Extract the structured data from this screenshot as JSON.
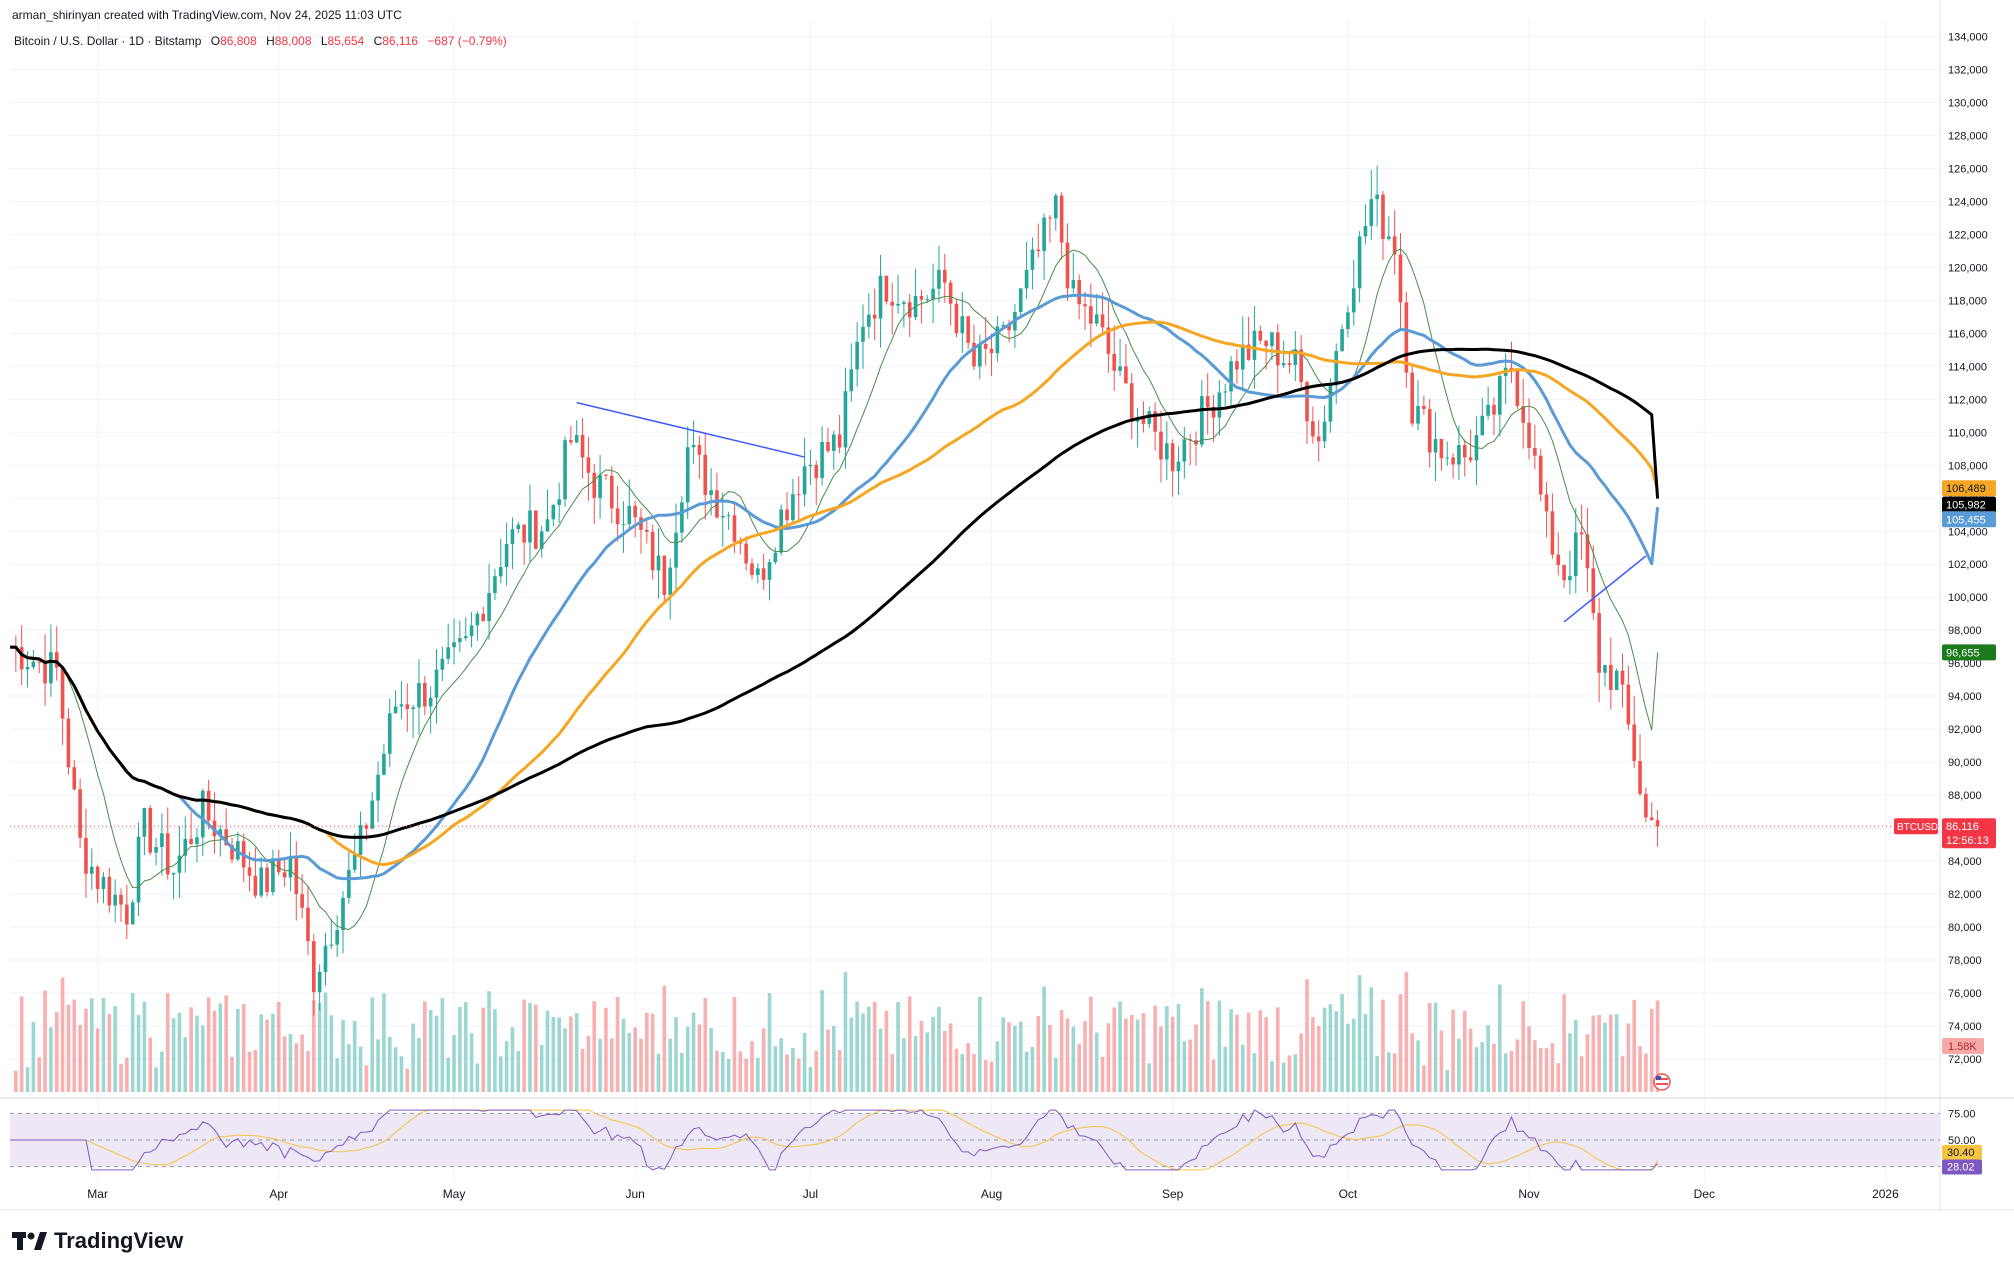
{
  "header": {
    "author_line": "arman_shirinyan created with TradingView.com, Nov 24, 2025 11:03 UTC",
    "symbol": "Bitcoin / U.S. Dollar · 1D · Bitstamp",
    "ohlc": {
      "o_label": "O",
      "o": "86,808",
      "h_label": "H",
      "h": "88,008",
      "l_label": "L",
      "l": "85,654",
      "c_label": "C",
      "c": "86,116",
      "change": "−687 (−0.79%)"
    }
  },
  "branding": {
    "logo_text": "TradingView"
  },
  "colors": {
    "up": "#26a69a",
    "down": "#ef5350",
    "ma_fast": "#4a8c4a",
    "ma_blue": "#5b9bd5",
    "ma_orange": "#f5a623",
    "ma_black": "#000000",
    "rsi_line": "#7e57c2",
    "rsi_ma": "#f5c542",
    "rsi_band": "#ede7f6"
  },
  "chart_data": {
    "type": "candlestick",
    "title": "Bitcoin / U.S. Dollar · 1D · Bitstamp",
    "xlabel": "",
    "ylabel": "",
    "ylim": [
      70000,
      135000
    ],
    "y_ticks": [
      72000,
      74000,
      76000,
      78000,
      80000,
      82000,
      84000,
      86000,
      88000,
      90000,
      92000,
      94000,
      96000,
      98000,
      100000,
      102000,
      104000,
      106000,
      108000,
      110000,
      112000,
      114000,
      116000,
      118000,
      120000,
      122000,
      124000,
      126000,
      128000,
      130000,
      132000,
      134000
    ],
    "y_tick_labels": [
      "72,000",
      "74,000",
      "76,000",
      "78,000",
      "80,000",
      "82,000",
      "84,000",
      "86,000",
      "88,000",
      "90,000",
      "92,000",
      "94,000",
      "96,000",
      "98,000",
      "100,000",
      "102,000",
      "104,000",
      "106,000",
      "108,000",
      "110,000",
      "112,000",
      "114,000",
      "116,000",
      "118,000",
      "120,000",
      "122,000",
      "124,000",
      "126,000",
      "128,000",
      "130,000",
      "132,000",
      "134,000"
    ],
    "x_tick_labels": [
      "Mar",
      "Apr",
      "May",
      "Jun",
      "Jul",
      "Aug",
      "Sep",
      "Oct",
      "Nov",
      "Dec",
      "2026"
    ],
    "x_tick_days": [
      15,
      46,
      76,
      107,
      137,
      168,
      199,
      229,
      260,
      290,
      321
    ],
    "grid": true,
    "series_overview": [
      {
        "day": 0,
        "price": 97000
      },
      {
        "day": 8,
        "price": 95500
      },
      {
        "day": 12,
        "price": 85000
      },
      {
        "day": 15,
        "price": 83000
      },
      {
        "day": 20,
        "price": 81000
      },
      {
        "day": 23,
        "price": 86000
      },
      {
        "day": 28,
        "price": 83500
      },
      {
        "day": 33,
        "price": 87000
      },
      {
        "day": 38,
        "price": 85000
      },
      {
        "day": 43,
        "price": 82500
      },
      {
        "day": 48,
        "price": 84000
      },
      {
        "day": 52,
        "price": 77000
      },
      {
        "day": 55,
        "price": 80000
      },
      {
        "day": 60,
        "price": 85000
      },
      {
        "day": 66,
        "price": 93500
      },
      {
        "day": 72,
        "price": 94500
      },
      {
        "day": 78,
        "price": 97000
      },
      {
        "day": 85,
        "price": 103500
      },
      {
        "day": 92,
        "price": 104500
      },
      {
        "day": 96,
        "price": 109500
      },
      {
        "day": 100,
        "price": 107000
      },
      {
        "day": 106,
        "price": 105000
      },
      {
        "day": 112,
        "price": 101000
      },
      {
        "day": 116,
        "price": 109000
      },
      {
        "day": 120,
        "price": 106500
      },
      {
        "day": 124,
        "price": 104500
      },
      {
        "day": 128,
        "price": 101000
      },
      {
        "day": 132,
        "price": 105000
      },
      {
        "day": 136,
        "price": 108000
      },
      {
        "day": 142,
        "price": 109500
      },
      {
        "day": 146,
        "price": 117000
      },
      {
        "day": 150,
        "price": 119000
      },
      {
        "day": 155,
        "price": 118000
      },
      {
        "day": 160,
        "price": 119000
      },
      {
        "day": 165,
        "price": 114000
      },
      {
        "day": 170,
        "price": 115500
      },
      {
        "day": 175,
        "price": 120000
      },
      {
        "day": 179,
        "price": 123500
      },
      {
        "day": 182,
        "price": 118000
      },
      {
        "day": 186,
        "price": 116500
      },
      {
        "day": 190,
        "price": 113000
      },
      {
        "day": 195,
        "price": 110000
      },
      {
        "day": 199,
        "price": 108500
      },
      {
        "day": 205,
        "price": 111500
      },
      {
        "day": 210,
        "price": 114500
      },
      {
        "day": 215,
        "price": 115500
      },
      {
        "day": 220,
        "price": 114000
      },
      {
        "day": 224,
        "price": 109500
      },
      {
        "day": 229,
        "price": 118500
      },
      {
        "day": 233,
        "price": 124000
      },
      {
        "day": 237,
        "price": 121500
      },
      {
        "day": 240,
        "price": 111500
      },
      {
        "day": 245,
        "price": 109000
      },
      {
        "day": 249,
        "price": 108500
      },
      {
        "day": 253,
        "price": 110500
      },
      {
        "day": 257,
        "price": 114000
      },
      {
        "day": 260,
        "price": 110000
      },
      {
        "day": 263,
        "price": 104000
      },
      {
        "day": 266,
        "price": 101500
      },
      {
        "day": 269,
        "price": 103500
      },
      {
        "day": 272,
        "price": 96000
      },
      {
        "day": 275,
        "price": 95000
      },
      {
        "day": 278,
        "price": 90500
      },
      {
        "day": 280,
        "price": 86500
      },
      {
        "day": 282,
        "price": 86116
      }
    ],
    "moving_averages": [
      {
        "name": "MA fast",
        "last_label": "96,655",
        "last_value": 96655,
        "color": "#4a8c4a"
      },
      {
        "name": "MA blue",
        "last_label": "105,455",
        "last_value": 105455,
        "color": "#5b9bd5"
      },
      {
        "name": "MA orange",
        "last_label": "106,489",
        "last_value": 106489,
        "color": "#f5a623"
      },
      {
        "name": "MA black",
        "last_label": "105,982",
        "last_value": 105982,
        "color": "#000000"
      }
    ],
    "last_price": {
      "symbol": "BTCUSD",
      "label": "86,116",
      "value": 86116,
      "countdown": "12:56:13"
    },
    "volume": {
      "last_label": "1.58K"
    },
    "trendlines": [
      {
        "from_day": 97,
        "from_price": 111800,
        "to_day": 136,
        "to_price": 108500
      },
      {
        "from_day": 266,
        "from_price": 98500,
        "to_day": 280,
        "to_price": 102500
      }
    ],
    "rsi": {
      "levels": [
        "75.00",
        "50.00"
      ],
      "rsi_label": "28.02",
      "rsi_value": 28.02,
      "ma_label": "30.40",
      "ma_value": 30.4
    }
  }
}
